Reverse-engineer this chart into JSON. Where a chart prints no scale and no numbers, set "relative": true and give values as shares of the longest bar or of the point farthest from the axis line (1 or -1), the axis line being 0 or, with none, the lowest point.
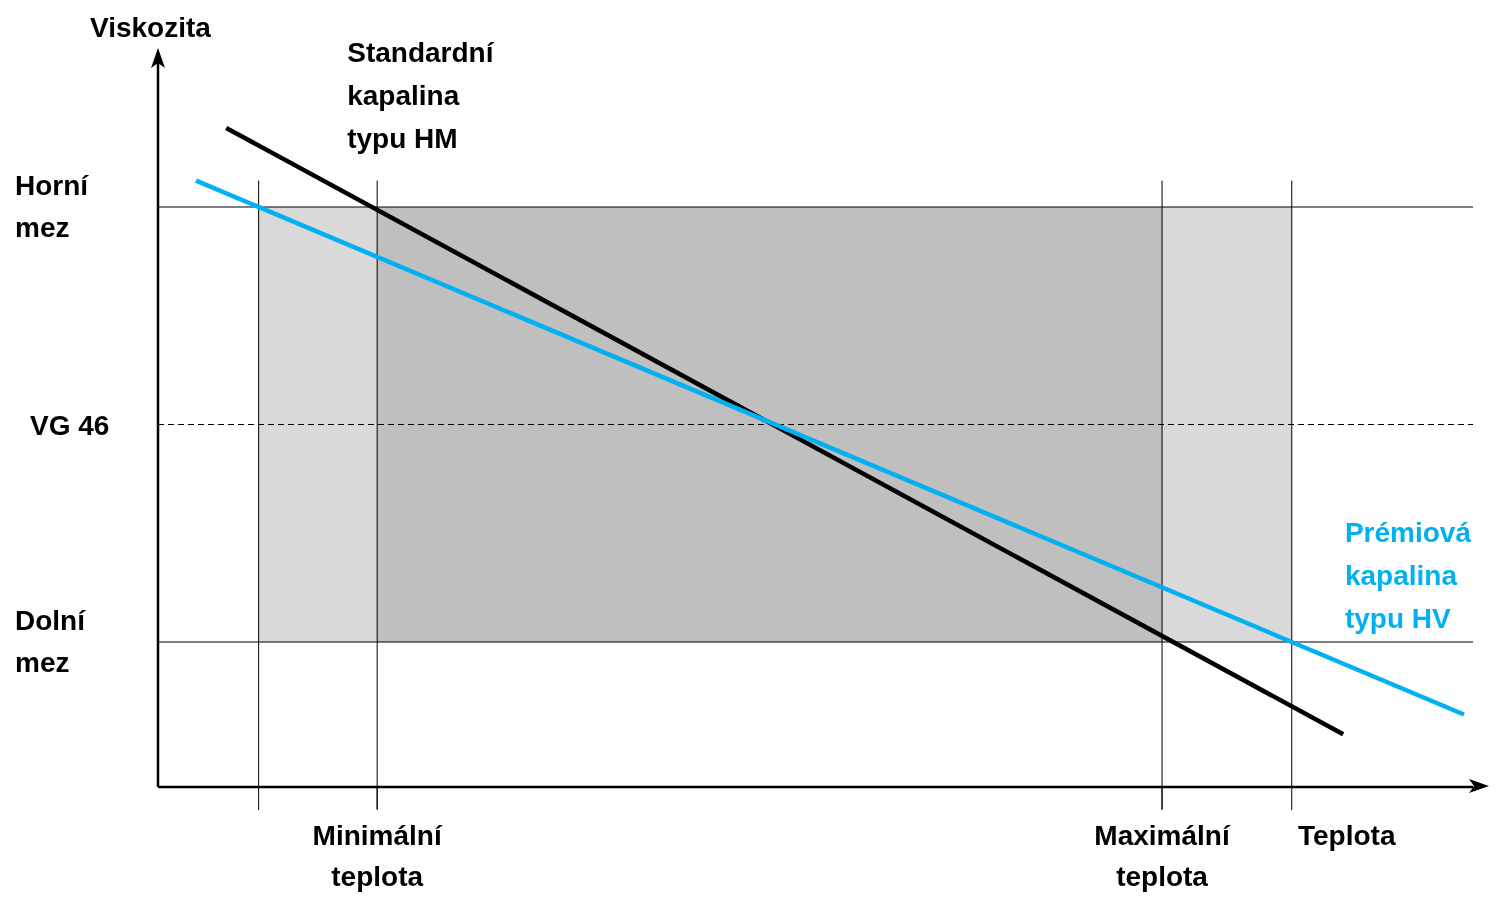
{
  "chart_data": {
    "type": "line",
    "xlabel": "Teplota",
    "ylabel": "Viskozita",
    "relative": true,
    "grid": "x",
    "categories": [
      null,
      null,
      null,
      null,
      null,
      null,
      "Minimální teplota",
      null,
      null,
      null,
      null,
      null,
      null,
      null,
      null,
      null,
      null,
      null,
      null,
      null,
      null,
      null,
      null,
      null,
      null,
      null,
      null,
      null,
      null,
      null,
      null,
      null,
      "Maximální teplota",
      null,
      null,
      null,
      null,
      null,
      null,
      null,
      null,
      null,
      null
    ],
    "series": [
      {
        "name": "Standardní kapalina typu HM",
        "color": "#000000",
        "values": [
          null,
          1,
          null,
          null,
          null,
          null,
          null,
          null,
          null,
          null,
          null,
          null,
          null,
          null,
          null,
          null,
          null,
          null,
          null,
          null,
          null,
          null,
          null,
          null,
          null,
          null,
          null,
          null,
          null,
          null,
          null,
          null,
          null,
          null,
          null,
          null,
          null,
          null,
          0.08,
          null,
          null,
          null,
          null
        ]
      },
      {
        "name": "Prémiová kapalina typu HV",
        "color": "#00b0f0",
        "values": [
          0.92,
          null,
          null,
          null,
          null,
          null,
          null,
          null,
          null,
          null,
          null,
          null,
          null,
          null,
          null,
          null,
          null,
          null,
          null,
          null,
          null,
          null,
          null,
          null,
          null,
          null,
          null,
          null,
          null,
          null,
          null,
          null,
          null,
          null,
          null,
          null,
          null,
          null,
          null,
          null,
          null,
          null,
          0.11
        ]
      }
    ],
    "ref_lines": [
      {
        "axis": "y",
        "value": 0.88,
        "label": "Horní mez",
        "line_style": "solid",
        "color": "#000000"
      },
      {
        "axis": "y",
        "value": 0.55,
        "label": "VG 46",
        "line_style": "dashed",
        "color": "#000000"
      },
      {
        "axis": "y",
        "value": 0.22,
        "label": "Dolní mez",
        "line_style": "solid",
        "color": "#000000"
      }
    ],
    "bands": [
      {
        "axis": "y",
        "from": 0.22,
        "to": 0.88,
        "color": "#d9d9d9"
      },
      {
        "axis": "x",
        "from": "Minimální teplota",
        "to": "Maximální teplota",
        "color": "#bfbfbf"
      }
    ]
  }
}
